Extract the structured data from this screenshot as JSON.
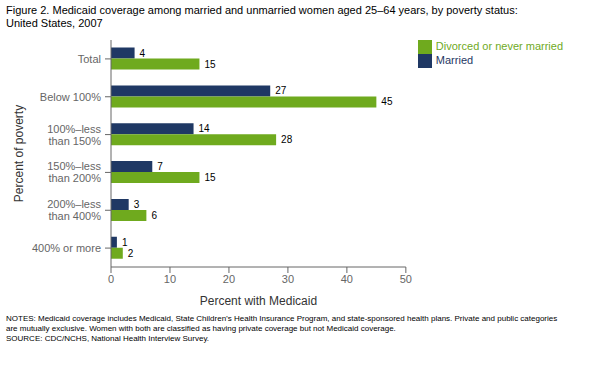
{
  "chart_data": {
    "type": "bar",
    "orientation": "horizontal",
    "title": "Figure 2. Medicaid coverage among married and unmarried women aged 25–64 years, by poverty status:\nUnited States, 2007",
    "categories": [
      "Total",
      "Below 100%",
      "100%–less\nthan 150%",
      "150%–less\nthan 200%",
      "200%–less\nthan 400%",
      "400% or more"
    ],
    "series": [
      {
        "name": "Married",
        "color": "#1F3864",
        "values": [
          4,
          27,
          14,
          7,
          3,
          1
        ]
      },
      {
        "name": "Divorced or never married",
        "color": "#6FAA1E",
        "values": [
          15,
          45,
          28,
          15,
          6,
          2
        ]
      }
    ],
    "xlabel": "Percent with Medicaid",
    "ylabel": "Percent of poverty",
    "xlim": [
      0,
      50
    ],
    "xticks": [
      0,
      10,
      20,
      30,
      40,
      50
    ],
    "data_labels": true,
    "grid": false,
    "legend": "upper right",
    "notes": "NOTES: Medicaid coverage includes Medicaid, State Children’s Health Insurance Program, and state-sponsored health plans. Private and public categories\nare mutually exclusive. Women with both are classified as having private coverage but not Medicaid coverage.\nSOURCE: CDC/NCHS, National Health Interview Survey."
  }
}
